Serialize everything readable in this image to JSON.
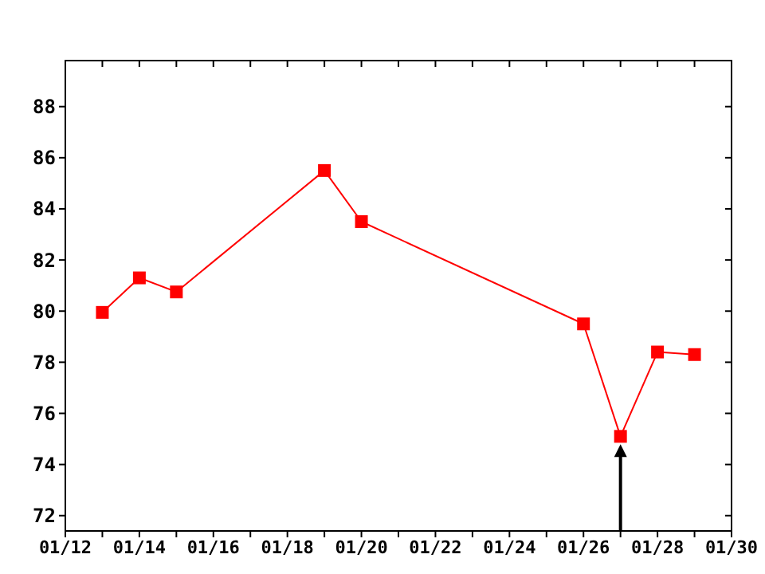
{
  "chart_data": {
    "type": "line",
    "x": [
      "--01-13",
      "--01-14",
      "--01-15",
      "--01-19",
      "--01-20",
      "--01-26",
      "--01-27",
      "--01-28",
      "--01-29"
    ],
    "series": [
      {
        "color": "#ff0000",
        "values": [
          79.95,
          81.3,
          80.75,
          85.5,
          83.5,
          79.5,
          75.1,
          78.4,
          78.3
        ]
      }
    ],
    "xlim": [
      "--01-12",
      "--01-30"
    ],
    "xticks": [
      {
        "value": "--01-12",
        "label": "01/12"
      },
      {
        "value": "--01-13",
        "label": null
      },
      {
        "value": "--01-14",
        "label": "01/14"
      },
      {
        "value": "--01-15",
        "label": null
      },
      {
        "value": "--01-16",
        "label": "01/16"
      },
      {
        "value": "--01-17",
        "label": null
      },
      {
        "value": "--01-18",
        "label": "01/18"
      },
      {
        "value": "--01-19",
        "label": null
      },
      {
        "value": "--01-20",
        "label": "01/20"
      },
      {
        "value": "--01-21",
        "label": null
      },
      {
        "value": "--01-22",
        "label": "01/22"
      },
      {
        "value": "--01-23",
        "label": null
      },
      {
        "value": "--01-24",
        "label": "01/24"
      },
      {
        "value": "--01-25",
        "label": null
      },
      {
        "value": "--01-26",
        "label": "01/26"
      },
      {
        "value": "--01-27",
        "label": null
      },
      {
        "value": "--01-28",
        "label": "01/28"
      },
      {
        "value": "--01-29",
        "label": null
      },
      {
        "value": "--01-30",
        "label": "01/30"
      }
    ],
    "ylim": [
      71.4,
      89.8
    ],
    "yticks": [
      72,
      74,
      76,
      78,
      80,
      82,
      84,
      86,
      88
    ],
    "grid": false,
    "legend": false,
    "marker": "square",
    "line_style": "solid"
  }
}
